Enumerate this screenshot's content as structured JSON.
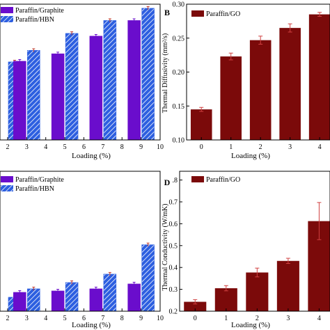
{
  "colors": {
    "graphite": "#6a0dcc",
    "hbn_fill": "#2d5fe0",
    "hbn_hatch": "#ffffff",
    "go": "#7b0a0a",
    "axis": "#000000"
  },
  "chart_data": [
    {
      "panel": "",
      "type": "bar",
      "title": "",
      "xlabel": "Loading (%)",
      "ylabel": "",
      "x_ticks": [
        "2",
        "3",
        "4",
        "5",
        "6",
        "7",
        "8",
        "9",
        "10"
      ],
      "xlim": [
        1.6,
        10
      ],
      "ylim": [
        0,
        1
      ],
      "legend": {
        "placement": "top-left",
        "entries": [
          "Paraffin/Graphite",
          "Paraffin/HBN"
        ]
      },
      "groups": [
        {
          "x": 2,
          "values": [
            null,
            0.575
          ]
        },
        {
          "x": 3,
          "values": [
            0.58,
            0.66
          ]
        },
        {
          "x": 4,
          "values": [
            null,
            null
          ]
        },
        {
          "x": 5,
          "values": [
            0.635,
            0.785
          ]
        },
        {
          "x": 6,
          "values": [
            null,
            null
          ]
        },
        {
          "x": 7,
          "values": [
            0.765,
            0.88
          ]
        },
        {
          "x": 8,
          "values": [
            null,
            null
          ]
        },
        {
          "x": 9,
          "values": [
            0.88,
            0.97
          ]
        }
      ],
      "series": [
        {
          "name": "Paraffin/Graphite",
          "color": "#6a0dcc",
          "hatched": false
        },
        {
          "name": "Paraffin/HBN",
          "color": "#2d5fe0",
          "hatched": true
        }
      ],
      "error_bars": true
    },
    {
      "panel": "B",
      "type": "bar",
      "title": "",
      "xlabel": "Loading (%)",
      "ylabel": "Thermal Diffusivity (mm²/s)",
      "categories": [
        "0",
        "1",
        "2",
        "3",
        "4"
      ],
      "y_ticks": [
        "0.10",
        "0.15",
        "0.20",
        "0.25",
        "0.30"
      ],
      "ylim": [
        0.1,
        0.3
      ],
      "legend": {
        "placement": "top-left",
        "entries": [
          "Paraffin/GO"
        ]
      },
      "series": [
        {
          "name": "Paraffin/GO",
          "color": "#7b0a0a",
          "values": [
            0.145,
            0.223,
            0.247,
            0.265,
            0.285
          ],
          "errors": [
            0.003,
            0.005,
            0.006,
            0.006,
            0.003
          ]
        }
      ]
    },
    {
      "panel": "",
      "type": "bar",
      "title": "",
      "xlabel": "Loading (%)",
      "ylabel": "",
      "x_ticks": [
        "2",
        "3",
        "4",
        "5",
        "6",
        "7",
        "8",
        "9",
        "10"
      ],
      "xlim": [
        1.6,
        10
      ],
      "ylim": [
        0,
        1
      ],
      "legend": {
        "placement": "top-left",
        "entries": [
          "Paraffin/Graphite",
          "Paraffin/HBN"
        ]
      },
      "groups": [
        {
          "x": 2,
          "values": [
            null,
            0.1
          ]
        },
        {
          "x": 3,
          "values": [
            0.135,
            0.16
          ]
        },
        {
          "x": 4,
          "values": [
            null,
            null
          ]
        },
        {
          "x": 5,
          "values": [
            0.145,
            0.205
          ]
        },
        {
          "x": 6,
          "values": [
            null,
            null
          ]
        },
        {
          "x": 7,
          "values": [
            0.16,
            0.265
          ]
        },
        {
          "x": 8,
          "values": [
            null,
            null
          ]
        },
        {
          "x": 9,
          "values": [
            0.195,
            0.475
          ]
        }
      ],
      "series": [
        {
          "name": "Paraffin/Graphite",
          "color": "#6a0dcc",
          "hatched": false
        },
        {
          "name": "Paraffin/HBN",
          "color": "#2d5fe0",
          "hatched": true
        }
      ],
      "error_bars": true
    },
    {
      "panel": "D",
      "type": "bar",
      "title": "",
      "xlabel": "Loading (%)",
      "ylabel": "Thermal Conductivity (W/mK)",
      "categories": [
        "0",
        "1",
        "2",
        "3",
        "4"
      ],
      "y_ticks": [
        "0.2",
        "0.3",
        "0.4",
        "0.5",
        "0.6",
        "0.7",
        "0.8"
      ],
      "ylim": [
        0.2,
        0.84
      ],
      "legend": {
        "placement": "top-left",
        "entries": [
          "Paraffin/GO"
        ]
      },
      "series": [
        {
          "name": "Paraffin/GO",
          "color": "#7b0a0a",
          "values": [
            0.243,
            0.305,
            0.377,
            0.43,
            0.612
          ],
          "errors": [
            0.01,
            0.012,
            0.02,
            0.012,
            0.085
          ]
        }
      ]
    }
  ]
}
